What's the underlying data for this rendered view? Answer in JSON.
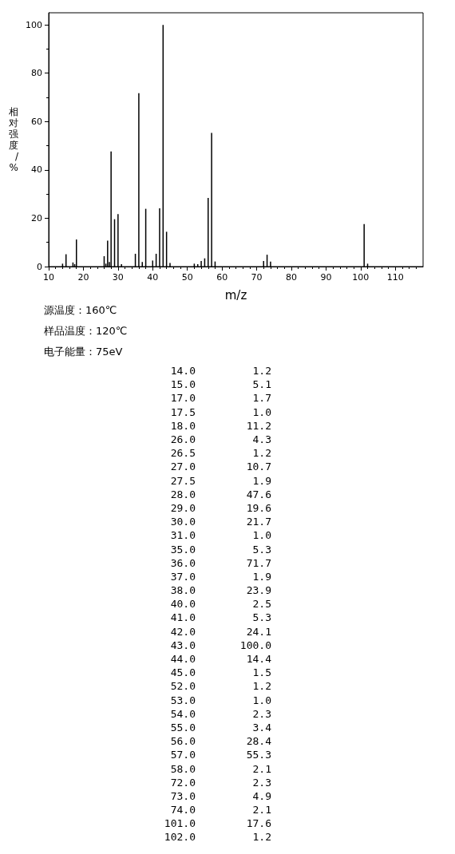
{
  "chart_data": [
    {
      "type": "bar",
      "xlabel": "m/z",
      "ylabel": "相对强度/%",
      "x": [
        14,
        15,
        17,
        17.5,
        18,
        26,
        26.5,
        27,
        27.5,
        28,
        29,
        30,
        31,
        35,
        36,
        37,
        38,
        40,
        41,
        42,
        43,
        44,
        45,
        52,
        53,
        54,
        55,
        56,
        57,
        58,
        72,
        73,
        74,
        101,
        102
      ],
      "values": [
        1.2,
        5.1,
        1.7,
        1.0,
        11.2,
        4.3,
        1.2,
        10.7,
        1.9,
        47.6,
        19.6,
        21.7,
        1.0,
        5.3,
        71.7,
        1.9,
        23.9,
        2.5,
        5.3,
        24.1,
        100.0,
        14.4,
        1.5,
        1.2,
        1.0,
        2.3,
        3.4,
        28.4,
        55.3,
        2.1,
        2.3,
        4.9,
        2.1,
        17.6,
        1.2
      ],
      "color": "#000000",
      "xlim": [
        10,
        118
      ],
      "xticks": [
        10,
        20,
        30,
        40,
        50,
        60,
        70,
        80,
        90,
        100,
        110
      ],
      "ylim": [
        0,
        105
      ],
      "yticks": [
        0,
        20,
        40,
        60,
        80,
        100
      ],
      "grid": false,
      "annotations": [
        "源温度：160℃",
        "样品温度：120℃",
        "电子能量：75eV"
      ]
    },
    {
      "type": "other",
      "categories": [
        "14.0",
        "15.0",
        "17.0",
        "17.5",
        "18.0",
        "26.0",
        "26.5",
        "27.0",
        "27.5",
        "28.0",
        "29.0",
        "30.0",
        "31.0",
        "35.0",
        "36.0",
        "37.0",
        "38.0",
        "40.0",
        "41.0",
        "42.0",
        "43.0",
        "44.0",
        "45.0",
        "52.0",
        "53.0",
        "54.0",
        "55.0",
        "56.0",
        "57.0",
        "58.0",
        "72.0",
        "73.0",
        "74.0",
        "101.0",
        "102.0"
      ],
      "values": [
        1.2,
        5.1,
        1.7,
        1.0,
        11.2,
        4.3,
        1.2,
        10.7,
        1.9,
        47.6,
        19.6,
        21.7,
        1.0,
        5.3,
        71.7,
        1.9,
        23.9,
        2.5,
        5.3,
        24.1,
        100.0,
        14.4,
        1.5,
        1.2,
        1.0,
        2.3,
        3.4,
        28.4,
        55.3,
        2.1,
        2.3,
        4.9,
        2.1,
        17.6,
        1.2
      ],
      "value_labels": [
        "1.2",
        "5.1",
        "1.7",
        "1.0",
        "11.2",
        "4.3",
        "1.2",
        "10.7",
        "1.9",
        "47.6",
        "19.6",
        "21.7",
        "1.0",
        "5.3",
        "71.7",
        "1.9",
        "23.9",
        "2.5",
        "5.3",
        "24.1",
        "100.0",
        "14.4",
        "1.5",
        "1.2",
        "1.0",
        "2.3",
        "3.4",
        "28.4",
        "55.3",
        "2.1",
        "2.3",
        "4.9",
        "2.1",
        "17.6",
        "1.2"
      ]
    }
  ]
}
